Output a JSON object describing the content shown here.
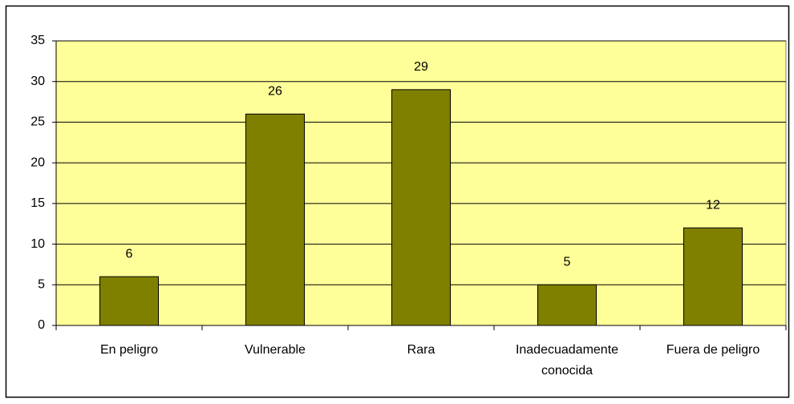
{
  "chart_data": {
    "type": "bar",
    "categories": [
      "En peligro",
      "Vulnerable",
      "Rara",
      "Inadecuadamente conocida",
      "Fuera de peligro"
    ],
    "values": [
      6,
      26,
      29,
      5,
      12
    ],
    "color": "#808000",
    "plot_background": "#ffff99",
    "ylim": [
      0,
      35
    ],
    "yticks": [
      0,
      5,
      10,
      15,
      20,
      25,
      30,
      35
    ],
    "grid": true
  }
}
